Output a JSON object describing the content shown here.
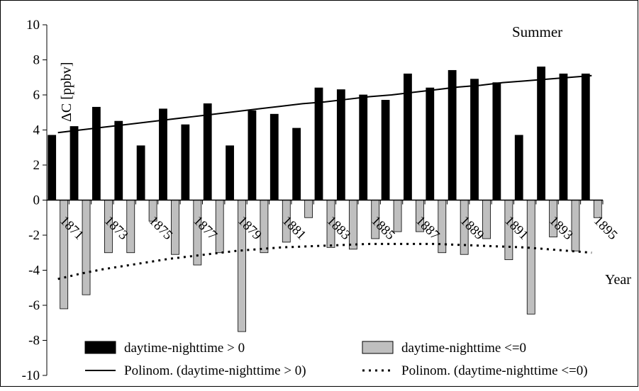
{
  "chart_data": {
    "type": "bar",
    "season_label": "Summer",
    "ylabel": "ΔC [ppbv]",
    "xlabel": "Year",
    "ylim": [
      -10,
      10
    ],
    "yticks": [
      10,
      8,
      6,
      4,
      2,
      0,
      -2,
      -4,
      -6,
      -8,
      -10
    ],
    "grid": false,
    "legend_position": "bottom",
    "x": [
      1871,
      1872,
      1873,
      1874,
      1875,
      1876,
      1877,
      1878,
      1879,
      1880,
      1881,
      1882,
      1883,
      1884,
      1885,
      1886,
      1887,
      1888,
      1889,
      1890,
      1891,
      1892,
      1893,
      1894,
      1895
    ],
    "xtick_labels": [
      "1871",
      "1873",
      "1875",
      "1877",
      "1879",
      "1881",
      "1883",
      "1885",
      "1887",
      "1889",
      "1891",
      "1893",
      "1895"
    ],
    "series": [
      {
        "name": "daytime-nighttime > 0",
        "color": "#000000",
        "values": [
          3.7,
          4.2,
          5.3,
          4.5,
          3.1,
          5.2,
          4.3,
          5.5,
          3.1,
          5.1,
          4.9,
          4.1,
          6.4,
          6.3,
          6.0,
          5.7,
          7.2,
          6.4,
          7.4,
          6.9,
          6.7,
          3.7,
          7.6,
          7.2,
          7.2
        ]
      },
      {
        "name": "daytime-nighttime <=0",
        "color": "#bfbfbf",
        "values": [
          -6.2,
          -5.4,
          -3.0,
          -3.0,
          -1.2,
          -3.1,
          -3.7,
          -3.0,
          -7.5,
          -3.0,
          -2.4,
          -1.0,
          -2.7,
          -2.8,
          -2.2,
          -1.8,
          -1.8,
          -3.0,
          -3.1,
          -2.2,
          -3.4,
          -6.5,
          -2.1,
          -2.9,
          -1.0
        ]
      }
    ],
    "trendlines": [
      {
        "name": "Polinom. (daytime-nighttime > 0)",
        "style": "solid",
        "values": [
          3.85,
          4.0,
          4.15,
          4.3,
          4.45,
          4.6,
          4.75,
          4.9,
          5.05,
          5.2,
          5.35,
          5.5,
          5.6,
          5.75,
          5.9,
          6.0,
          6.15,
          6.3,
          6.45,
          6.55,
          6.7,
          6.8,
          6.9,
          7.0,
          7.1
        ]
      },
      {
        "name": "Polinom. (daytime-nighttime <=0)",
        "style": "dotted",
        "values": [
          -4.5,
          -4.2,
          -3.95,
          -3.75,
          -3.55,
          -3.35,
          -3.2,
          -3.05,
          -2.9,
          -2.8,
          -2.7,
          -2.65,
          -2.6,
          -2.55,
          -2.5,
          -2.5,
          -2.5,
          -2.5,
          -2.55,
          -2.6,
          -2.65,
          -2.7,
          -2.8,
          -2.9,
          -3.0
        ]
      }
    ]
  }
}
